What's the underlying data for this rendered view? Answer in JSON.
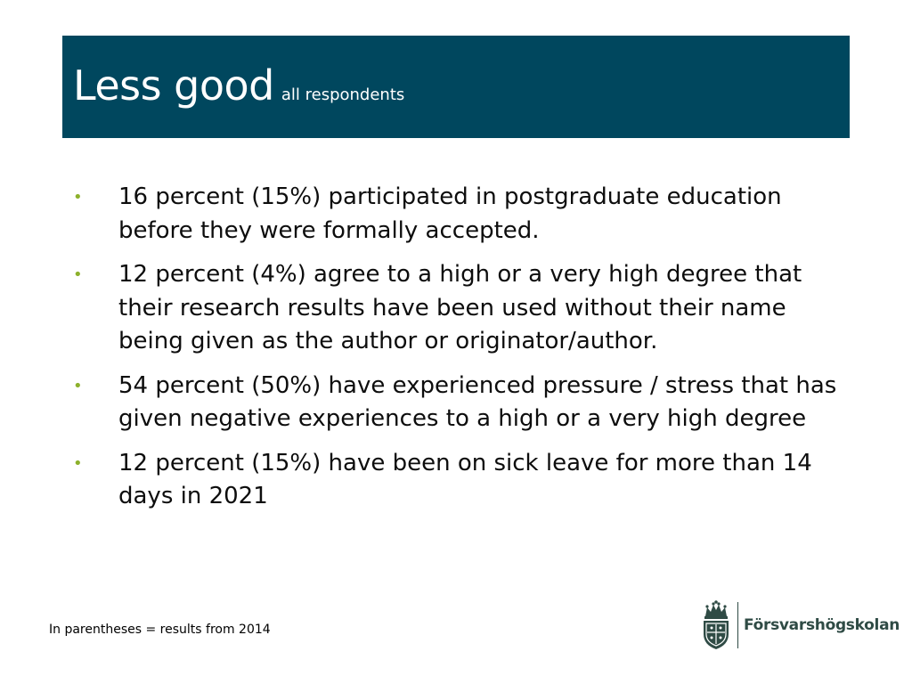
{
  "slide": {
    "title": "Less good",
    "subtitle": "all respondents",
    "bullets": [
      "16 percent (15%) participated in postgraduate education before they were formally accepted.",
      "12 percent (4%) agree to a high or a very high degree that their research results have been used without their name being given as the author or originator/author.",
      "54 percent (50%) have experienced pressure / stress that has given negative experiences to a high or a very high degree",
      "12 percent (15%) have been on sick leave for more than 14 days in 2021"
    ],
    "bullet_symbol": "•",
    "footnote": "In parentheses = results from 2014"
  },
  "logo": {
    "name": "Försvarshögskolan",
    "emblem_icon": "crown-shield-emblem-icon"
  },
  "colors": {
    "title_bar": "#00475e",
    "bullet": "#8db12c",
    "logo_text": "#2f4b45"
  }
}
